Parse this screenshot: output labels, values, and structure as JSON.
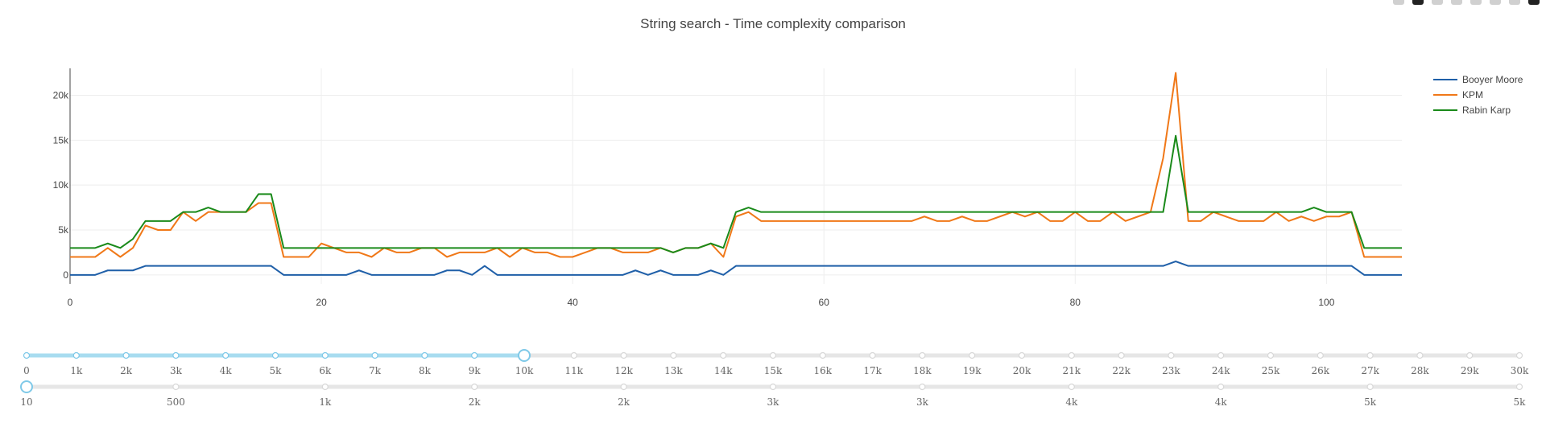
{
  "chart_data": {
    "type": "line",
    "title": "String search - Time complexity comparison",
    "xlabel": "",
    "ylabel": "",
    "xlim": [
      0,
      106
    ],
    "ylim": [
      -1000,
      23000
    ],
    "x_ticks": [
      0,
      20,
      40,
      60,
      80,
      100
    ],
    "y_ticks": [
      0,
      5000,
      10000,
      15000,
      20000
    ],
    "y_tick_labels": [
      "0",
      "5k",
      "10k",
      "15k",
      "20k"
    ],
    "grid": true,
    "legend_position": "top-right",
    "series": [
      {
        "name": "Booyer Moore",
        "color": "#1f5fa8",
        "x": [
          0,
          1,
          2,
          3,
          4,
          5,
          6,
          7,
          8,
          9,
          10,
          11,
          12,
          13,
          14,
          15,
          16,
          17,
          18,
          19,
          20,
          21,
          22,
          23,
          24,
          25,
          26,
          27,
          28,
          29,
          30,
          31,
          32,
          33,
          34,
          35,
          36,
          37,
          38,
          39,
          40,
          41,
          42,
          43,
          44,
          45,
          46,
          47,
          48,
          49,
          50,
          51,
          52,
          53,
          54,
          55,
          56,
          57,
          58,
          59,
          60,
          61,
          62,
          63,
          64,
          65,
          66,
          67,
          68,
          69,
          70,
          71,
          72,
          73,
          74,
          75,
          76,
          77,
          78,
          79,
          80,
          81,
          82,
          83,
          84,
          85,
          86,
          87,
          88,
          89,
          90,
          91,
          92,
          93,
          94,
          95,
          96,
          97,
          98,
          99,
          100,
          101,
          102,
          103,
          104,
          105,
          106
        ],
        "values": [
          0,
          0,
          0,
          500,
          500,
          500,
          1000,
          1000,
          1000,
          1000,
          1000,
          1000,
          1000,
          1000,
          1000,
          1000,
          1000,
          0,
          0,
          0,
          0,
          0,
          0,
          500,
          0,
          0,
          0,
          0,
          0,
          0,
          500,
          500,
          0,
          1000,
          0,
          0,
          0,
          0,
          0,
          0,
          0,
          0,
          0,
          0,
          0,
          500,
          0,
          500,
          0,
          0,
          0,
          500,
          0,
          1000,
          1000,
          1000,
          1000,
          1000,
          1000,
          1000,
          1000,
          1000,
          1000,
          1000,
          1000,
          1000,
          1000,
          1000,
          1000,
          1000,
          1000,
          1000,
          1000,
          1000,
          1000,
          1000,
          1000,
          1000,
          1000,
          1000,
          1000,
          1000,
          1000,
          1000,
          1000,
          1000,
          1000,
          1000,
          1500,
          1000,
          1000,
          1000,
          1000,
          1000,
          1000,
          1000,
          1000,
          1000,
          1000,
          1000,
          1000,
          1000,
          1000,
          0,
          0,
          0,
          0
        ]
      },
      {
        "name": "KPM",
        "color": "#f07818",
        "x": [
          0,
          1,
          2,
          3,
          4,
          5,
          6,
          7,
          8,
          9,
          10,
          11,
          12,
          13,
          14,
          15,
          16,
          17,
          18,
          19,
          20,
          21,
          22,
          23,
          24,
          25,
          26,
          27,
          28,
          29,
          30,
          31,
          32,
          33,
          34,
          35,
          36,
          37,
          38,
          39,
          40,
          41,
          42,
          43,
          44,
          45,
          46,
          47,
          48,
          49,
          50,
          51,
          52,
          53,
          54,
          55,
          56,
          57,
          58,
          59,
          60,
          61,
          62,
          63,
          64,
          65,
          66,
          67,
          68,
          69,
          70,
          71,
          72,
          73,
          74,
          75,
          76,
          77,
          78,
          79,
          80,
          81,
          82,
          83,
          84,
          85,
          86,
          87,
          88,
          89,
          90,
          91,
          92,
          93,
          94,
          95,
          96,
          97,
          98,
          99,
          100,
          101,
          102,
          103,
          104,
          105,
          106
        ],
        "values": [
          2000,
          2000,
          2000,
          3000,
          2000,
          3000,
          5500,
          5000,
          5000,
          7000,
          6000,
          7000,
          7000,
          7000,
          7000,
          8000,
          8000,
          2000,
          2000,
          2000,
          3500,
          3000,
          2500,
          2500,
          2000,
          3000,
          2500,
          2500,
          3000,
          3000,
          2000,
          2500,
          2500,
          2500,
          3000,
          2000,
          3000,
          2500,
          2500,
          2000,
          2000,
          2500,
          3000,
          3000,
          2500,
          2500,
          2500,
          3000,
          2500,
          3000,
          3000,
          3500,
          2000,
          6500,
          7000,
          6000,
          6000,
          6000,
          6000,
          6000,
          6000,
          6000,
          6000,
          6000,
          6000,
          6000,
          6000,
          6000,
          6500,
          6000,
          6000,
          6500,
          6000,
          6000,
          6500,
          7000,
          6500,
          7000,
          6000,
          6000,
          7000,
          6000,
          6000,
          7000,
          6000,
          6500,
          7000,
          13000,
          22500,
          6000,
          6000,
          7000,
          6500,
          6000,
          6000,
          6000,
          7000,
          6000,
          6500,
          6000,
          6500,
          6500,
          7000,
          2000,
          2000,
          2000,
          2000
        ]
      },
      {
        "name": "Rabin Karp",
        "color": "#1a8a1a",
        "x": [
          0,
          1,
          2,
          3,
          4,
          5,
          6,
          7,
          8,
          9,
          10,
          11,
          12,
          13,
          14,
          15,
          16,
          17,
          18,
          19,
          20,
          21,
          22,
          23,
          24,
          25,
          26,
          27,
          28,
          29,
          30,
          31,
          32,
          33,
          34,
          35,
          36,
          37,
          38,
          39,
          40,
          41,
          42,
          43,
          44,
          45,
          46,
          47,
          48,
          49,
          50,
          51,
          52,
          53,
          54,
          55,
          56,
          57,
          58,
          59,
          60,
          61,
          62,
          63,
          64,
          65,
          66,
          67,
          68,
          69,
          70,
          71,
          72,
          73,
          74,
          75,
          76,
          77,
          78,
          79,
          80,
          81,
          82,
          83,
          84,
          85,
          86,
          87,
          88,
          89,
          90,
          91,
          92,
          93,
          94,
          95,
          96,
          97,
          98,
          99,
          100,
          101,
          102,
          103,
          104,
          105,
          106
        ],
        "values": [
          3000,
          3000,
          3000,
          3500,
          3000,
          4000,
          6000,
          6000,
          6000,
          7000,
          7000,
          7500,
          7000,
          7000,
          7000,
          9000,
          9000,
          3000,
          3000,
          3000,
          3000,
          3000,
          3000,
          3000,
          3000,
          3000,
          3000,
          3000,
          3000,
          3000,
          3000,
          3000,
          3000,
          3000,
          3000,
          3000,
          3000,
          3000,
          3000,
          3000,
          3000,
          3000,
          3000,
          3000,
          3000,
          3000,
          3000,
          3000,
          2500,
          3000,
          3000,
          3500,
          3000,
          7000,
          7500,
          7000,
          7000,
          7000,
          7000,
          7000,
          7000,
          7000,
          7000,
          7000,
          7000,
          7000,
          7000,
          7000,
          7000,
          7000,
          7000,
          7000,
          7000,
          7000,
          7000,
          7000,
          7000,
          7000,
          7000,
          7000,
          7000,
          7000,
          7000,
          7000,
          7000,
          7000,
          7000,
          7000,
          15500,
          7000,
          7000,
          7000,
          7000,
          7000,
          7000,
          7000,
          7000,
          7000,
          7000,
          7500,
          7000,
          7000,
          7000,
          3000,
          3000,
          3000,
          3000
        ]
      }
    ]
  },
  "sliders": [
    {
      "name": "slider-top",
      "active_index": 10,
      "labels": [
        "0",
        "1k",
        "2k",
        "3k",
        "4k",
        "5k",
        "6k",
        "7k",
        "8k",
        "9k",
        "10k",
        "11k",
        "12k",
        "13k",
        "14k",
        "15k",
        "16k",
        "17k",
        "18k",
        "19k",
        "20k",
        "21k",
        "22k",
        "23k",
        "24k",
        "25k",
        "26k",
        "27k",
        "28k",
        "29k",
        "30k"
      ]
    },
    {
      "name": "slider-bottom",
      "active_index": 0,
      "labels": [
        "10",
        "500",
        "1k",
        "2k",
        "2k",
        "3k",
        "3k",
        "4k",
        "4k",
        "5k",
        "5k"
      ]
    }
  ]
}
